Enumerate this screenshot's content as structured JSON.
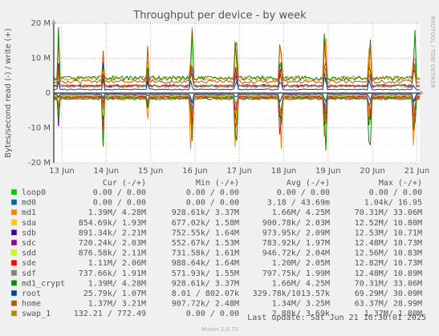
{
  "chart_data": {
    "type": "line",
    "title": "Throughput per device - by week",
    "ylabel": "Bytes/second read (-) / write (+)",
    "ylim": [
      -20000000,
      20000000
    ],
    "y_ticks": [
      {
        "value": 20000000,
        "label": "20 M"
      },
      {
        "value": 10000000,
        "label": "10 M"
      },
      {
        "value": 0,
        "label": "0"
      },
      {
        "value": -10000000,
        "label": "-10 M"
      },
      {
        "value": -20000000,
        "label": "-20 M"
      }
    ],
    "x_ticks": [
      "13 Jun",
      "14 Jun",
      "15 Jun",
      "16 Jun",
      "17 Jun",
      "18 Jun",
      "19 Jun",
      "20 Jun",
      "21 Jun"
    ],
    "grid": true,
    "columns": [
      "Cur (-/+)",
      "Min (-/+)",
      "Avg (-/+)",
      "Max (-/+)"
    ],
    "series": [
      {
        "name": "loop0",
        "color": "#00cc00",
        "cur": "0.00 /    0.00",
        "min": "0.00 /    0.00",
        "avg": "0.00 /    0.00",
        "max": "0.00 /    0.00",
        "read_avg": 0,
        "write_avg": 0,
        "read_max": 0,
        "write_max": 0
      },
      {
        "name": "md0",
        "color": "#0066b3",
        "cur": "0.00 /    0.00",
        "min": "0.00 /    0.00",
        "avg": "3.18 /   43.69m",
        "max": "1.04k/  16.95",
        "read_avg": 3.18,
        "write_avg": 0.04369,
        "read_max": 1040,
        "write_max": 16.95
      },
      {
        "name": "md1",
        "color": "#ff8000",
        "cur": "1.39M/   4.28M",
        "min": "928.61k/   3.37M",
        "avg": "1.66M/   4.25M",
        "max": "70.31M/  33.06M",
        "read_avg": 1660000,
        "write_avg": 4250000,
        "read_max": 70310000,
        "write_max": 33060000
      },
      {
        "name": "sda",
        "color": "#ffcc00",
        "cur": "854.69k/   1.93M",
        "min": "677.02k/   1.58M",
        "avg": "900.78k/   2.03M",
        "max": "12.52M/  10.80M",
        "read_avg": 900780,
        "write_avg": 2030000,
        "read_max": 12520000,
        "write_max": 10800000
      },
      {
        "name": "sdb",
        "color": "#330099",
        "cur": "891.34k/   2.21M",
        "min": "752.55k/   1.64M",
        "avg": "973.95k/   2.09M",
        "max": "12.53M/  10.71M",
        "read_avg": 973950,
        "write_avg": 2090000,
        "read_max": 12530000,
        "write_max": 10710000
      },
      {
        "name": "sdc",
        "color": "#990099",
        "cur": "720.24k/   2.03M",
        "min": "552.67k/   1.53M",
        "avg": "783.92k/   1.97M",
        "max": "12.48M/  10.73M",
        "read_avg": 783920,
        "write_avg": 1970000,
        "read_max": 12480000,
        "write_max": 10730000
      },
      {
        "name": "sdd",
        "color": "#ccff00",
        "cur": "876.58k/   2.11M",
        "min": "731.58k/   1.61M",
        "avg": "946.72k/   2.04M",
        "max": "12.56M/  10.83M",
        "read_avg": 946720,
        "write_avg": 2040000,
        "read_max": 12560000,
        "write_max": 10830000
      },
      {
        "name": "sde",
        "color": "#ff0000",
        "cur": "1.11M/   2.06M",
        "min": "988.64k/   1.64M",
        "avg": "1.20M/   2.05M",
        "max": "12.82M/  10.73M",
        "read_avg": 1200000,
        "write_avg": 2050000,
        "read_max": 12820000,
        "write_max": 10730000
      },
      {
        "name": "sdf",
        "color": "#808080",
        "cur": "737.66k/   1.91M",
        "min": "571.93k/   1.55M",
        "avg": "797.75k/   1.99M",
        "max": "12.48M/  10.89M",
        "read_avg": 797750,
        "write_avg": 1990000,
        "read_max": 12480000,
        "write_max": 10890000
      },
      {
        "name": "md1_crypt",
        "color": "#008f00",
        "cur": "1.39M/   4.28M",
        "min": "928.61k/   3.37M",
        "avg": "1.66M/   4.25M",
        "max": "70.31M/  33.06M",
        "read_avg": 1660000,
        "write_avg": 4250000,
        "read_max": 70310000,
        "write_max": 33060000
      },
      {
        "name": "root",
        "color": "#00487d",
        "cur": "25.79k/   1.07M",
        "min": "8.01 / 802.07k",
        "avg": "329.78k/1013.57k",
        "max": "69.29M/  30.09M",
        "read_avg": 329780,
        "write_avg": 1013570,
        "read_max": 69290000,
        "write_max": 30090000
      },
      {
        "name": "home",
        "color": "#b35a00",
        "cur": "1.37M/   3.21M",
        "min": "907.72k/   2.48M",
        "avg": "1.34M/   3.25M",
        "max": "63.37M/  28.99M",
        "read_avg": 1340000,
        "write_avg": 3250000,
        "read_max": 63370000,
        "write_max": 28990000
      },
      {
        "name": "swap_1",
        "color": "#b38f00",
        "cur": "132.21 / 772.49",
        "min": "0.00 /    0.00",
        "avg": "2.88k/   3.69k",
        "max": "1.37M/   1.80M",
        "read_avg": 2880,
        "write_avg": 3690,
        "read_max": 1370000,
        "write_max": 1800000
      }
    ]
  },
  "last_update": "Last update: Sat Jun 21 16:30:01 2025",
  "side_label": "RRDTOOL / TOBI OETIKER",
  "footer": "Munin 2.0.73"
}
